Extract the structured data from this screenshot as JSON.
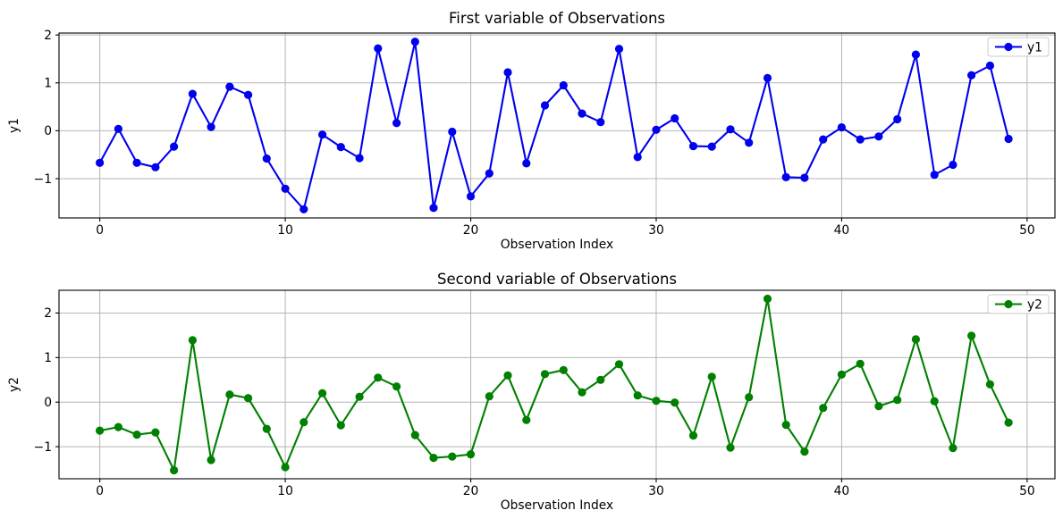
{
  "figure": {
    "background": "#ffffff"
  },
  "colors": {
    "grid": "#b4b4b4",
    "spine": "#000000",
    "text": "#000000",
    "legend_border": "#cccccc",
    "legend_background": "#ffffff"
  },
  "chart_data": [
    {
      "type": "line",
      "title": "First variable of Observations",
      "xlabel": "Observation Index",
      "ylabel": "y1",
      "grid": true,
      "legend_position": "upper right",
      "xlim": [
        -2.2,
        51.5
      ],
      "ylim": [
        -1.82,
        2.04
      ],
      "xticks": [
        0,
        10,
        20,
        30,
        40,
        50
      ],
      "yticks": [
        -1,
        0,
        1,
        2
      ],
      "x": [
        0,
        1,
        2,
        3,
        4,
        5,
        6,
        7,
        8,
        9,
        10,
        11,
        12,
        13,
        14,
        15,
        16,
        17,
        18,
        19,
        20,
        21,
        22,
        23,
        24,
        25,
        26,
        27,
        28,
        29,
        30,
        31,
        32,
        33,
        34,
        35,
        36,
        37,
        38,
        39,
        40,
        41,
        42,
        43,
        44,
        45,
        46,
        47,
        48,
        49
      ],
      "series": [
        {
          "name": "y1",
          "color": "#0000ee",
          "marker": "o",
          "values": [
            -0.67,
            0.04,
            -0.67,
            -0.76,
            -0.33,
            0.77,
            0.08,
            0.92,
            0.75,
            -0.58,
            -1.21,
            -1.64,
            -0.08,
            -0.34,
            -0.57,
            1.72,
            0.16,
            1.86,
            -1.61,
            -0.02,
            -1.37,
            -0.89,
            1.22,
            -0.68,
            0.53,
            0.95,
            0.36,
            0.18,
            1.71,
            -0.55,
            0.02,
            0.26,
            -0.32,
            -0.33,
            0.03,
            -0.25,
            1.1,
            -0.97,
            -0.98,
            -0.18,
            0.07,
            -0.18,
            -0.12,
            0.24,
            1.59,
            -0.92,
            -0.71,
            1.16,
            1.36,
            -0.17
          ]
        }
      ]
    },
    {
      "type": "line",
      "title": "Second variable of Observations",
      "xlabel": "Observation Index",
      "ylabel": "y2",
      "grid": true,
      "legend_position": "upper right",
      "xlim": [
        -2.2,
        51.5
      ],
      "ylim": [
        -1.72,
        2.51
      ],
      "xticks": [
        0,
        10,
        20,
        30,
        40,
        50
      ],
      "yticks": [
        -1,
        0,
        1,
        2
      ],
      "x": [
        0,
        1,
        2,
        3,
        4,
        5,
        6,
        7,
        8,
        9,
        10,
        11,
        12,
        13,
        14,
        15,
        16,
        17,
        18,
        19,
        20,
        21,
        22,
        23,
        24,
        25,
        26,
        27,
        28,
        29,
        30,
        31,
        32,
        33,
        34,
        35,
        36,
        37,
        38,
        39,
        40,
        41,
        42,
        43,
        44,
        45,
        46,
        47,
        48,
        49
      ],
      "series": [
        {
          "name": "y2",
          "color": "#008000",
          "marker": "o",
          "values": [
            -0.64,
            -0.56,
            -0.73,
            -0.68,
            -1.53,
            1.39,
            -1.3,
            0.17,
            0.09,
            -0.6,
            -1.46,
            -0.45,
            0.2,
            -0.52,
            0.12,
            0.55,
            0.35,
            -0.74,
            -1.25,
            -1.22,
            -1.17,
            0.13,
            0.6,
            -0.4,
            0.63,
            0.72,
            0.22,
            0.5,
            0.85,
            0.15,
            0.03,
            -0.01,
            -0.75,
            0.57,
            -1.02,
            0.11,
            2.32,
            -0.51,
            -1.11,
            -0.13,
            0.62,
            0.86,
            -0.09,
            0.05,
            1.41,
            0.02,
            -1.03,
            1.49,
            0.4,
            -0.46
          ]
        }
      ]
    }
  ]
}
